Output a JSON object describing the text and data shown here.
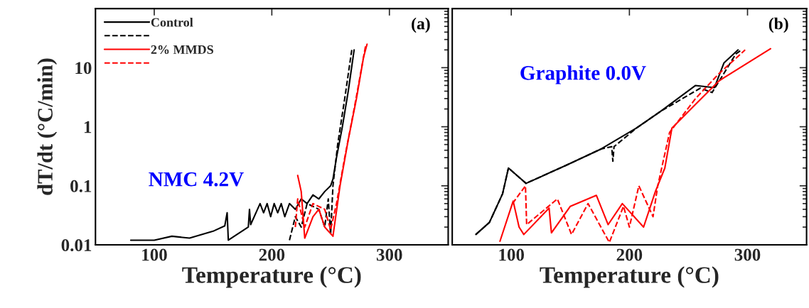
{
  "chart_data": [
    {
      "type": "line",
      "xlabel": "Temperature (°C)",
      "ylabel": "dT/dt (°C/min)",
      "log": "y",
      "xlim": [
        50,
        350
      ],
      "xticks": [
        100,
        200,
        300
      ],
      "ylim": [
        0.01,
        100
      ],
      "yticks": [
        0.01,
        0.1,
        1,
        10,
        {
          "value": 100,
          "label": null
        }
      ],
      "legend": "top left",
      "grid": false,
      "annotations": [
        "(a)",
        "NMC 4.2V"
      ],
      "series": [
        {
          "name": "Control",
          "color": "#000000",
          "line_style": "solid",
          "x": [
            80,
            100,
            115,
            130,
            150,
            160,
            162,
            163,
            180,
            181,
            182,
            190,
            193,
            196,
            199,
            202,
            205,
            208,
            211,
            215,
            220,
            225,
            230,
            235,
            240,
            245,
            250,
            252,
            255,
            260,
            265,
            270
          ],
          "values": [
            0.012,
            0.012,
            0.014,
            0.013,
            0.017,
            0.021,
            0.035,
            0.012,
            0.02,
            0.04,
            0.022,
            0.05,
            0.035,
            0.05,
            0.03,
            0.05,
            0.035,
            0.05,
            0.03,
            0.05,
            0.04,
            0.06,
            0.05,
            0.07,
            0.06,
            0.08,
            0.1,
            0.13,
            0.3,
            1,
            4,
            20
          ]
        },
        {
          "name": null,
          "color": "#000000",
          "line_style": "dashed",
          "x": [
            215,
            220,
            225,
            230,
            240,
            245,
            248,
            250,
            252,
            256,
            262,
            268
          ],
          "values": [
            0.012,
            0.03,
            0.02,
            0.05,
            0.04,
            0.02,
            0.06,
            0.015,
            0.1,
            0.5,
            3,
            20
          ]
        },
        {
          "name": "2% MMDS",
          "color": "#ff0000",
          "line_style": "solid",
          "x": [
            222,
            225,
            228,
            235,
            240,
            245,
            252,
            258,
            265,
            272,
            278,
            281
          ],
          "values": [
            0.15,
            0.08,
            0.013,
            0.03,
            0.04,
            0.02,
            0.014,
            0.1,
            0.6,
            3,
            15,
            25
          ]
        },
        {
          "name": null,
          "color": "#ff0000",
          "line_style": "dashed",
          "x": [
            220,
            222,
            228,
            235,
            245,
            250,
            255,
            262,
            270,
            280
          ],
          "values": [
            0.02,
            0.06,
            0.02,
            0.05,
            0.04,
            0.018,
            0.05,
            0.3,
            2,
            25
          ]
        }
      ]
    },
    {
      "type": "line",
      "xlabel": "Temperature (°C)",
      "log": "y",
      "xlim": [
        50,
        350
      ],
      "xticks": [
        100,
        200,
        300
      ],
      "ylim": [
        0.01,
        100
      ],
      "yticks": [
        0.01,
        0.1,
        1,
        10,
        {
          "value": 100,
          "label": null
        }
      ],
      "tick_labels": "x",
      "grid": false,
      "annotations": [
        "(b)",
        "Graphite 0.0V"
      ],
      "series": [
        {
          "color": "#000000",
          "line_style": "solid",
          "x": [
            70,
            81.5,
            92.6,
            97.6,
            112.5,
            146,
            176,
            206,
            226,
            256,
            272,
            280,
            292
          ],
          "values": [
            0.015,
            0.024,
            0.073,
            0.2,
            0.11,
            0.22,
            0.42,
            0.95,
            1.8,
            5.0,
            4.6,
            12,
            20
          ]
        },
        {
          "color": "#000000",
          "line_style": "dashed",
          "x": [
            70,
            81.5,
            92.6,
            97.6,
            112.5,
            146,
            176,
            185,
            186,
            187,
            206,
            226,
            260,
            270,
            280,
            290,
            295
          ],
          "values": [
            0.015,
            0.024,
            0.073,
            0.2,
            0.11,
            0.22,
            0.42,
            0.46,
            0.26,
            0.46,
            0.95,
            1.8,
            4.5,
            3.8,
            8,
            17,
            20
          ]
        },
        {
          "color": "#ff0000",
          "line_style": "solid",
          "x": [
            90.4,
            101.6,
            106.6,
            110.6,
            132,
            134,
            150,
            172,
            182,
            194,
            212,
            222,
            230,
            236,
            256,
            276,
            319.5
          ],
          "values": [
            0.0115,
            0.055,
            0.02,
            0.015,
            0.042,
            0.016,
            0.045,
            0.069,
            0.022,
            0.05,
            0.02,
            0.08,
            0.2,
            0.95,
            2.4,
            6.0,
            21
          ]
        },
        {
          "color": "#ff0000",
          "line_style": "dashed",
          "x": [
            101,
            112,
            113,
            139,
            151,
            165,
            183,
            195,
            200,
            208,
            220,
            224,
            234,
            256,
            276,
            298
          ],
          "values": [
            0.05,
            0.1,
            0.022,
            0.06,
            0.015,
            0.05,
            0.011,
            0.045,
            0.02,
            0.1,
            0.03,
            0.1,
            0.8,
            3,
            8,
            20
          ]
        }
      ]
    }
  ]
}
